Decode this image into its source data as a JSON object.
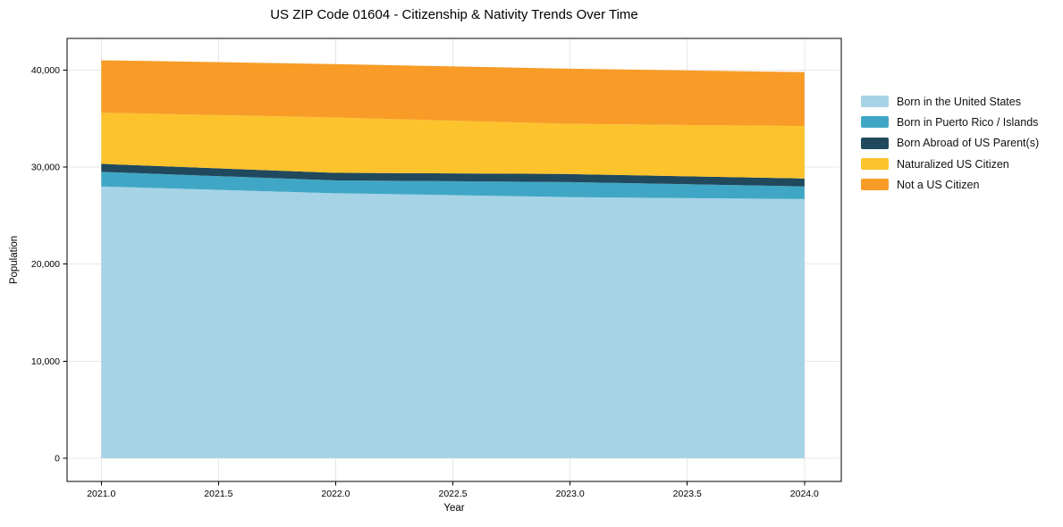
{
  "chart_data": {
    "type": "area",
    "stacked": true,
    "title": "US ZIP Code 01604 - Citizenship & Nativity Trends Over Time",
    "xlabel": "Year",
    "ylabel": "Population",
    "x": [
      2021,
      2022,
      2023,
      2024
    ],
    "series": [
      {
        "name": "Born in the United States",
        "color": "#a6d3e6",
        "values": [
          28000,
          27300,
          26900,
          26700
        ]
      },
      {
        "name": "Born in Puerto Rico / Islands",
        "color": "#3fa7c5",
        "values": [
          1500,
          1320,
          1550,
          1300
        ]
      },
      {
        "name": "Born Abroad of US Parent(s)",
        "color": "#21495d",
        "values": [
          830,
          780,
          830,
          820
        ]
      },
      {
        "name": "Naturalized US Citizen",
        "color": "#fcc32d",
        "values": [
          5270,
          5700,
          5170,
          5400
        ]
      },
      {
        "name": "Not a US Citizen",
        "color": "#f89c27",
        "values": [
          5400,
          5500,
          5680,
          5560
        ]
      }
    ],
    "totals": [
      41000,
      40600,
      40130,
      39780
    ],
    "xtick_values": [
      2021.0,
      2021.5,
      2022.0,
      2022.5,
      2023.0,
      2023.5,
      2024.0
    ],
    "xtick_labels": [
      "2021.0",
      "2021.5",
      "2022.0",
      "2022.5",
      "2023.0",
      "2023.5",
      "2024.0"
    ],
    "ytick_values": [
      0,
      10000,
      20000,
      30000,
      40000
    ],
    "ytick_labels": [
      "0",
      "10,000",
      "20,000",
      "30,000",
      "40,000"
    ],
    "xlim": [
      2020.854,
      2024.157
    ],
    "ylim": [
      -2390,
      43250
    ],
    "grid": true,
    "grid_color": "#e8e8e8",
    "axis_color": "#000000",
    "legend_position": "center-right-outside"
  }
}
